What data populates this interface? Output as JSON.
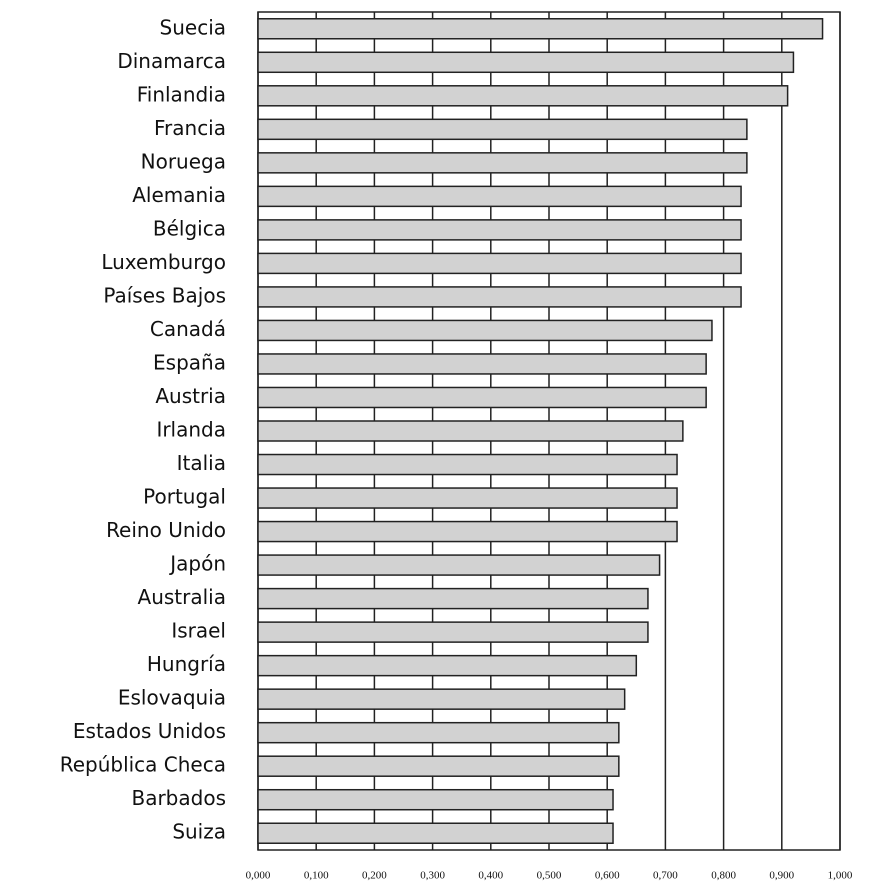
{
  "chart_data": {
    "type": "bar",
    "orientation": "horizontal",
    "categories": [
      "Suecia",
      "Dinamarca",
      "Finlandia",
      "Francia",
      "Noruega",
      "Alemania",
      "Bélgica",
      "Luxemburgo",
      "Países Bajos",
      "Canadá",
      "España",
      "Austria",
      "Irlanda",
      "Italia",
      "Portugal",
      "Reino Unido",
      "Japón",
      "Australia",
      "Israel",
      "Hungría",
      "Eslovaquia",
      "Estados Unidos",
      "República Checa",
      "Barbados",
      "Suiza"
    ],
    "values": [
      0.97,
      0.92,
      0.91,
      0.84,
      0.84,
      0.83,
      0.83,
      0.83,
      0.83,
      0.78,
      0.77,
      0.77,
      0.73,
      0.72,
      0.72,
      0.72,
      0.69,
      0.67,
      0.67,
      0.65,
      0.63,
      0.62,
      0.62,
      0.61,
      0.61
    ],
    "color": "#d2d2d2",
    "xlim": [
      0,
      1
    ],
    "xticks": [
      {
        "value": 0,
        "label": "0,000"
      },
      {
        "value": 0.1,
        "label": "0,100"
      },
      {
        "value": 0.2,
        "label": "0,200"
      },
      {
        "value": 0.3,
        "label": "0,300"
      },
      {
        "value": 0.4,
        "label": "0,400"
      },
      {
        "value": 0.5,
        "label": "0,500"
      },
      {
        "value": 0.6,
        "label": "0,600"
      },
      {
        "value": 0.7,
        "label": "0,700"
      },
      {
        "value": 0.8,
        "label": "0,800"
      },
      {
        "value": 0.9,
        "label": "0,900"
      },
      {
        "value": 1,
        "label": "1,000"
      }
    ],
    "grid": true
  }
}
